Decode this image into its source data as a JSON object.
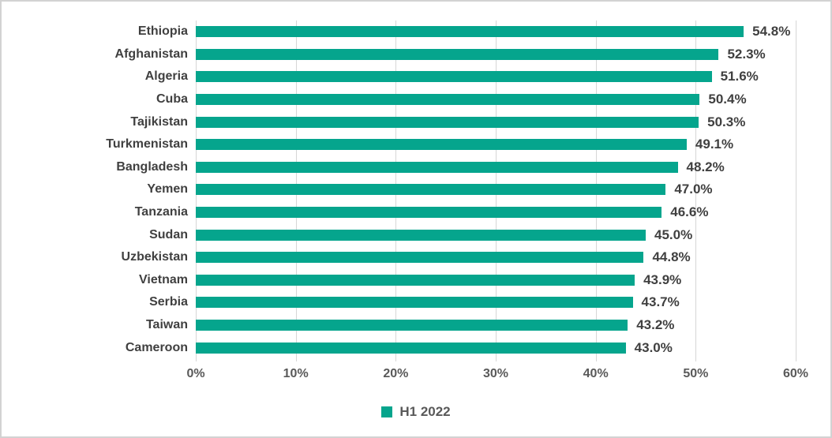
{
  "chart_data": {
    "type": "bar",
    "orientation": "horizontal",
    "title": "",
    "xlabel": "",
    "ylabel": "",
    "categories": [
      "Ethiopia",
      "Afghanistan",
      "Algeria",
      "Cuba",
      "Tajikistan",
      "Turkmenistan",
      "Bangladesh",
      "Yemen",
      "Tanzania",
      "Sudan",
      "Uzbekistan",
      "Vietnam",
      "Serbia",
      "Taiwan",
      "Cameroon"
    ],
    "series": [
      {
        "name": "H1 2022",
        "values": [
          54.8,
          52.3,
          51.6,
          50.4,
          50.3,
          49.1,
          48.2,
          47.0,
          46.6,
          45.0,
          44.8,
          43.9,
          43.7,
          43.2,
          43.0
        ],
        "value_labels": [
          "54.8%",
          "52.3%",
          "51.6%",
          "50.4%",
          "50.3%",
          "49.1%",
          "48.2%",
          "47.0%",
          "46.6%",
          "45.0%",
          "44.8%",
          "43.9%",
          "43.7%",
          "43.2%",
          "43.0%"
        ]
      }
    ],
    "xlim": [
      0,
      60
    ],
    "xtick_values": [
      0,
      10,
      20,
      30,
      40,
      50,
      60
    ],
    "xtick_labels": [
      "0%",
      "10%",
      "20%",
      "30%",
      "40%",
      "50%",
      "60%"
    ],
    "grid": "vertical",
    "legend": {
      "position": "bottom-center",
      "entries": [
        "H1 2022"
      ]
    },
    "colors": {
      "bar": "#05a58d",
      "gridline": "#d6d6d6",
      "category_label": "#404040",
      "value_label": "#404040",
      "tick_label": "#595959",
      "legend_label": "#595959",
      "frame_border": "#d2d2d2",
      "background": "#ffffff"
    }
  }
}
